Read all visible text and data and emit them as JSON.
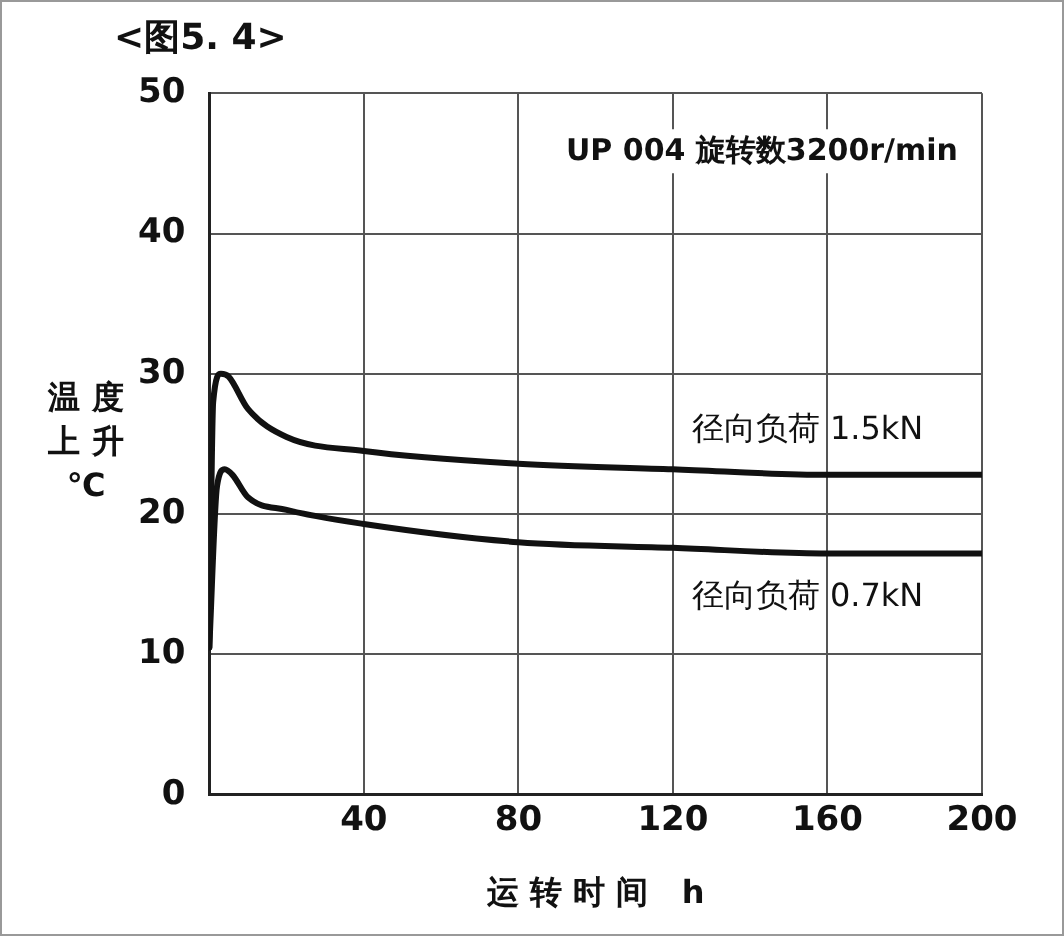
{
  "chart_data": {
    "type": "line",
    "title": "<图5. 4>",
    "xlabel": "运转时间 h",
    "ylabel": "温度上升℃",
    "annotations": [
      "UP 004 旋转数3200r/min"
    ],
    "xlim": [
      0,
      200
    ],
    "xticks": [
      {
        "value": 0,
        "label": null
      },
      40,
      80,
      120,
      160,
      200
    ],
    "ylim": [
      0,
      50
    ],
    "yticks": [
      0,
      10,
      20,
      30,
      40,
      50
    ],
    "grid": true,
    "legend": false,
    "marker": "none",
    "line_style": "solid",
    "series": [
      {
        "name": "径向负荷 1.5kN",
        "color": "#111111",
        "x": [
          0,
          1,
          3,
          5,
          10,
          20,
          40,
          80,
          120,
          160,
          200
        ],
        "values": [
          10.5,
          28,
          30,
          29.8,
          27.5,
          25.5,
          24.5,
          23.6,
          23.2,
          22.8,
          22.8
        ]
      },
      {
        "name": "径向负荷 0.7kN",
        "color": "#111111",
        "x": [
          0,
          2,
          4,
          6,
          10,
          20,
          40,
          80,
          120,
          160,
          200
        ],
        "values": [
          10.5,
          22,
          23.2,
          22.8,
          21.2,
          20.3,
          19.3,
          18,
          17.6,
          17.2,
          17.2
        ]
      }
    ]
  }
}
